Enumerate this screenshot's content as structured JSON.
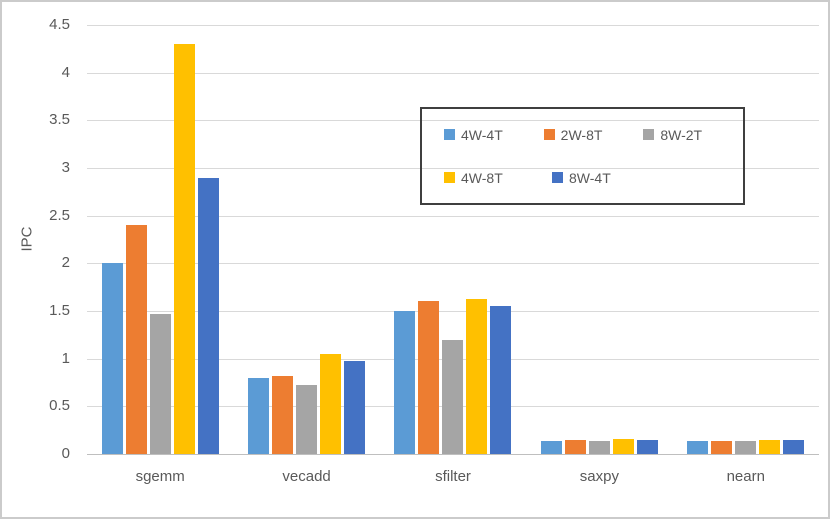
{
  "figure": {
    "background": "#FFFFFF",
    "border_color": "#CBCBCB"
  },
  "chart_data": {
    "type": "bar",
    "title": "",
    "xlabel": "",
    "ylabel": "IPC",
    "ylim": [
      0,
      4.5
    ],
    "ytick_step": 0.5,
    "grid": "horizontal",
    "categories": [
      "sgemm",
      "vecadd",
      "sfilter",
      "saxpy",
      "nearn"
    ],
    "series": [
      {
        "name": "4W-4T",
        "color": "#5B9BD5",
        "values": [
          2.0,
          0.8,
          1.5,
          0.14,
          0.14
        ]
      },
      {
        "name": "2W-8T",
        "color": "#ED7D31",
        "values": [
          2.4,
          0.82,
          1.6,
          0.15,
          0.14
        ]
      },
      {
        "name": "8W-2T",
        "color": "#A5A5A5",
        "values": [
          1.47,
          0.72,
          1.2,
          0.14,
          0.14
        ]
      },
      {
        "name": "4W-8T",
        "color": "#FFC000",
        "values": [
          4.3,
          1.05,
          1.63,
          0.16,
          0.15
        ]
      },
      {
        "name": "8W-4T",
        "color": "#4472C4",
        "values": [
          2.9,
          0.98,
          1.55,
          0.15,
          0.15
        ]
      }
    ],
    "legend": {
      "position": "inside-top-right",
      "border": true,
      "rows": [
        3,
        2
      ]
    },
    "colors": {
      "gridline": "#D9D9D9",
      "axis_line": "#BFBFBF",
      "text": "#595959",
      "legend_border": "#3F3F3F"
    }
  }
}
